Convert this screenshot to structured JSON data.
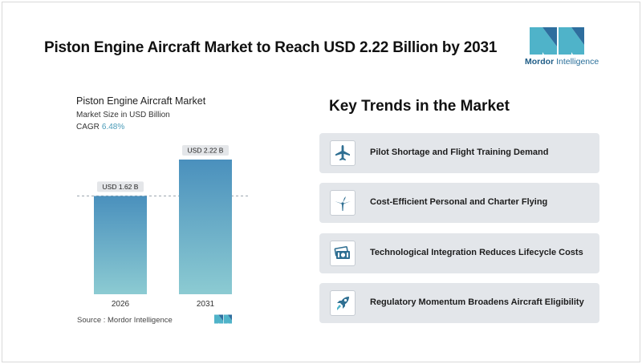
{
  "header": {
    "title": "Piston Engine Aircraft Market to Reach USD 2.22 Billion by 2031"
  },
  "logo": {
    "brand_bold": "Mordor",
    "brand_rest": " Intelligence",
    "colors": [
      "#4fb3c9",
      "#2e6e9e"
    ]
  },
  "chart": {
    "title": "Piston Engine Aircraft Market",
    "subtitle": "Market Size in USD Billion",
    "cagr_label": "CAGR",
    "cagr_value": "6.48%",
    "source": "Source :  Mordor Intelligence"
  },
  "chart_data": {
    "type": "bar",
    "categories": [
      "2026",
      "2031"
    ],
    "values": [
      1.62,
      2.22
    ],
    "data_labels": [
      "USD 1.62 B",
      "USD 2.22 B"
    ],
    "title": "Piston Engine Aircraft Market",
    "ylabel": "Market Size in USD Billion",
    "ylim": [
      0,
      2.22
    ],
    "reference_line_value": 1.62,
    "bar_color_top": "#4a90bd",
    "bar_color_bottom": "#8ccbd2"
  },
  "trends": {
    "title": "Key Trends in the Market",
    "items": [
      {
        "label": "Pilot Shortage and Flight Training Demand",
        "icon": "airplane-icon"
      },
      {
        "label": "Cost-Efficient Personal and Charter Flying",
        "icon": "propeller-icon"
      },
      {
        "label": "Technological Integration Reduces Lifecycle Costs",
        "icon": "cash-icon"
      },
      {
        "label": "Regulatory Momentum Broadens Aircraft Eligibility",
        "icon": "rocket-icon"
      }
    ]
  }
}
